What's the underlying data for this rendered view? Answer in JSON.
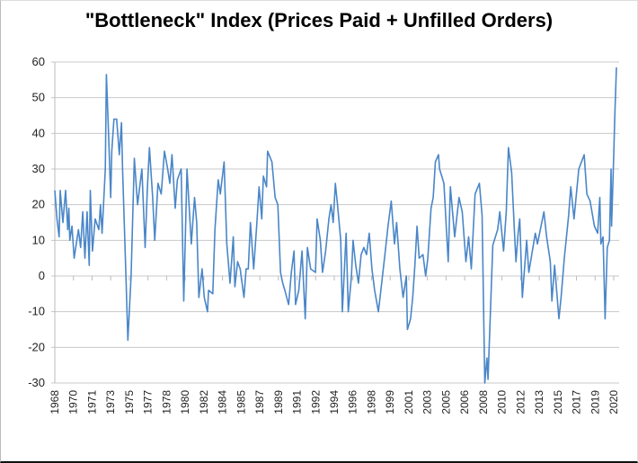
{
  "chart_data": {
    "type": "line",
    "title": "\"Bottleneck\" Index (Prices Paid + Unfilled Orders)",
    "xlabel": "",
    "ylabel": "",
    "ylim": [
      -30,
      60
    ],
    "yticks": [
      60,
      50,
      40,
      30,
      20,
      10,
      0,
      -10,
      -20,
      -30
    ],
    "xlim": [
      1968,
      2020.5
    ],
    "xtick_labels": [
      "1968",
      "1970",
      "1971",
      "1973",
      "1975",
      "1977",
      "1978",
      "1980",
      "1982",
      "1984",
      "1985",
      "1987",
      "1989",
      "1991",
      "1992",
      "1994",
      "1996",
      "1998",
      "1999",
      "2001",
      "2003",
      "2005",
      "2006",
      "2008",
      "2010",
      "2012",
      "2013",
      "2015",
      "2017",
      "2019",
      "2020"
    ],
    "grid": true,
    "legend": "none",
    "color": "#4a86c8",
    "series": [
      {
        "name": "Bottleneck Index",
        "points": [
          [
            1968.0,
            24
          ],
          [
            1968.2,
            16
          ],
          [
            1968.4,
            11
          ],
          [
            1968.5,
            24
          ],
          [
            1968.75,
            15
          ],
          [
            1969.0,
            24
          ],
          [
            1969.2,
            13
          ],
          [
            1969.3,
            19
          ],
          [
            1969.4,
            10
          ],
          [
            1969.6,
            14
          ],
          [
            1969.8,
            5
          ],
          [
            1970.2,
            13
          ],
          [
            1970.4,
            8
          ],
          [
            1970.6,
            18
          ],
          [
            1970.8,
            5
          ],
          [
            1971.0,
            18
          ],
          [
            1971.2,
            3
          ],
          [
            1971.3,
            24
          ],
          [
            1971.5,
            7
          ],
          [
            1971.75,
            16
          ],
          [
            1972.1,
            13
          ],
          [
            1972.25,
            20
          ],
          [
            1972.4,
            12
          ],
          [
            1972.7,
            30
          ],
          [
            1972.8,
            56.5
          ],
          [
            1973.0,
            40
          ],
          [
            1973.2,
            22
          ],
          [
            1973.3,
            35
          ],
          [
            1973.5,
            44
          ],
          [
            1973.75,
            44
          ],
          [
            1974.0,
            34
          ],
          [
            1974.2,
            43
          ],
          [
            1974.3,
            30
          ],
          [
            1974.6,
            2
          ],
          [
            1974.8,
            -18
          ],
          [
            1975.1,
            0
          ],
          [
            1975.4,
            33
          ],
          [
            1975.7,
            20
          ],
          [
            1976.1,
            30
          ],
          [
            1976.4,
            8
          ],
          [
            1976.6,
            24
          ],
          [
            1976.8,
            36
          ],
          [
            1977.1,
            22
          ],
          [
            1977.3,
            10
          ],
          [
            1977.6,
            26
          ],
          [
            1977.9,
            23
          ],
          [
            1978.2,
            35
          ],
          [
            1978.5,
            30
          ],
          [
            1978.7,
            26
          ],
          [
            1978.9,
            34
          ],
          [
            1979.2,
            19
          ],
          [
            1979.4,
            27
          ],
          [
            1979.75,
            30
          ],
          [
            1980.0,
            -7
          ],
          [
            1980.3,
            30
          ],
          [
            1980.7,
            9
          ],
          [
            1981.0,
            22
          ],
          [
            1981.2,
            15
          ],
          [
            1981.4,
            -6
          ],
          [
            1981.7,
            2
          ],
          [
            1981.9,
            -6
          ],
          [
            1982.2,
            -10
          ],
          [
            1982.3,
            -4
          ],
          [
            1982.7,
            -5
          ],
          [
            1982.9,
            13
          ],
          [
            1983.2,
            27
          ],
          [
            1983.4,
            23
          ],
          [
            1983.75,
            32
          ],
          [
            1984.0,
            9
          ],
          [
            1984.3,
            -2
          ],
          [
            1984.6,
            11
          ],
          [
            1984.75,
            -3
          ],
          [
            1985.0,
            4
          ],
          [
            1985.25,
            2
          ],
          [
            1985.6,
            -6
          ],
          [
            1985.8,
            2
          ],
          [
            1986.0,
            2
          ],
          [
            1986.2,
            15
          ],
          [
            1986.5,
            2
          ],
          [
            1986.8,
            15
          ],
          [
            1987.0,
            25
          ],
          [
            1987.25,
            16
          ],
          [
            1987.4,
            28
          ],
          [
            1987.7,
            25
          ],
          [
            1987.8,
            35
          ],
          [
            1988.2,
            32
          ],
          [
            1988.5,
            22
          ],
          [
            1988.75,
            20
          ],
          [
            1989.0,
            1
          ],
          [
            1989.2,
            -2
          ],
          [
            1989.4,
            -4
          ],
          [
            1989.75,
            -8
          ],
          [
            1990.0,
            1
          ],
          [
            1990.25,
            7
          ],
          [
            1990.4,
            -8
          ],
          [
            1990.7,
            -4
          ],
          [
            1991.0,
            7
          ],
          [
            1991.3,
            -12
          ],
          [
            1991.5,
            8
          ],
          [
            1991.8,
            2
          ],
          [
            1992.25,
            1
          ],
          [
            1992.4,
            16
          ],
          [
            1992.7,
            10
          ],
          [
            1992.9,
            1
          ],
          [
            1993.2,
            7
          ],
          [
            1993.5,
            16
          ],
          [
            1993.7,
            20
          ],
          [
            1993.9,
            15
          ],
          [
            1994.1,
            26
          ],
          [
            1994.3,
            20
          ],
          [
            1994.6,
            10
          ],
          [
            1994.75,
            -10
          ],
          [
            1995.1,
            12
          ],
          [
            1995.3,
            -10
          ],
          [
            1995.6,
            0
          ],
          [
            1995.75,
            10
          ],
          [
            1996.0,
            3
          ],
          [
            1996.25,
            -2
          ],
          [
            1996.5,
            6
          ],
          [
            1996.75,
            8
          ],
          [
            1997.0,
            6
          ],
          [
            1997.25,
            12
          ],
          [
            1997.5,
            2
          ],
          [
            1997.75,
            -4
          ],
          [
            1998.1,
            -10
          ],
          [
            1998.3,
            -5
          ],
          [
            1998.75,
            7
          ],
          [
            1999.0,
            14
          ],
          [
            1999.3,
            21
          ],
          [
            1999.6,
            9
          ],
          [
            1999.8,
            15
          ],
          [
            2000.1,
            2
          ],
          [
            2000.4,
            -6
          ],
          [
            2000.7,
            0
          ],
          [
            2000.8,
            -15
          ],
          [
            2001.1,
            -12
          ],
          [
            2001.3,
            -6
          ],
          [
            2001.5,
            3
          ],
          [
            2001.7,
            14
          ],
          [
            2001.9,
            5
          ],
          [
            2002.25,
            6
          ],
          [
            2002.5,
            0
          ],
          [
            2002.7,
            5
          ],
          [
            2003.0,
            19
          ],
          [
            2003.2,
            22
          ],
          [
            2003.4,
            32
          ],
          [
            2003.7,
            34
          ],
          [
            2003.8,
            30
          ],
          [
            2004.2,
            26
          ],
          [
            2004.6,
            4
          ],
          [
            2004.8,
            25
          ],
          [
            2005.2,
            11
          ],
          [
            2005.6,
            22
          ],
          [
            2005.9,
            18
          ],
          [
            2006.25,
            4
          ],
          [
            2006.5,
            11
          ],
          [
            2006.75,
            2
          ],
          [
            2007.1,
            23
          ],
          [
            2007.5,
            26
          ],
          [
            2007.75,
            17
          ],
          [
            2008.0,
            -30
          ],
          [
            2008.2,
            -23
          ],
          [
            2008.3,
            -29
          ],
          [
            2008.75,
            8.6
          ],
          [
            2009.2,
            13
          ],
          [
            2009.4,
            18
          ],
          [
            2009.75,
            7
          ],
          [
            2010.0,
            18
          ],
          [
            2010.2,
            36
          ],
          [
            2010.5,
            29
          ],
          [
            2010.75,
            13
          ],
          [
            2010.9,
            4
          ],
          [
            2011.1,
            12
          ],
          [
            2011.25,
            16
          ],
          [
            2011.5,
            -6
          ],
          [
            2011.7,
            2
          ],
          [
            2011.9,
            10
          ],
          [
            2012.1,
            1
          ],
          [
            2012.7,
            12
          ],
          [
            2012.9,
            9
          ],
          [
            2013.5,
            18
          ],
          [
            2013.75,
            11
          ],
          [
            2014.1,
            4
          ],
          [
            2014.25,
            -7
          ],
          [
            2014.5,
            3
          ],
          [
            2014.9,
            -12
          ],
          [
            2015.1,
            -6
          ],
          [
            2015.4,
            5
          ],
          [
            2015.8,
            17
          ],
          [
            2016.0,
            25
          ],
          [
            2016.3,
            16
          ],
          [
            2016.75,
            30
          ],
          [
            2017.25,
            34
          ],
          [
            2017.5,
            23
          ],
          [
            2017.8,
            21
          ],
          [
            2018.2,
            14
          ],
          [
            2018.5,
            12
          ],
          [
            2018.7,
            22
          ],
          [
            2018.8,
            9
          ],
          [
            2019.0,
            11
          ],
          [
            2019.2,
            -12
          ],
          [
            2019.4,
            8
          ],
          [
            2019.6,
            10
          ],
          [
            2019.75,
            30
          ],
          [
            2019.8,
            14
          ],
          [
            2020.0,
            34
          ],
          [
            2020.1,
            45
          ],
          [
            2020.25,
            58.5
          ]
        ]
      }
    ]
  }
}
